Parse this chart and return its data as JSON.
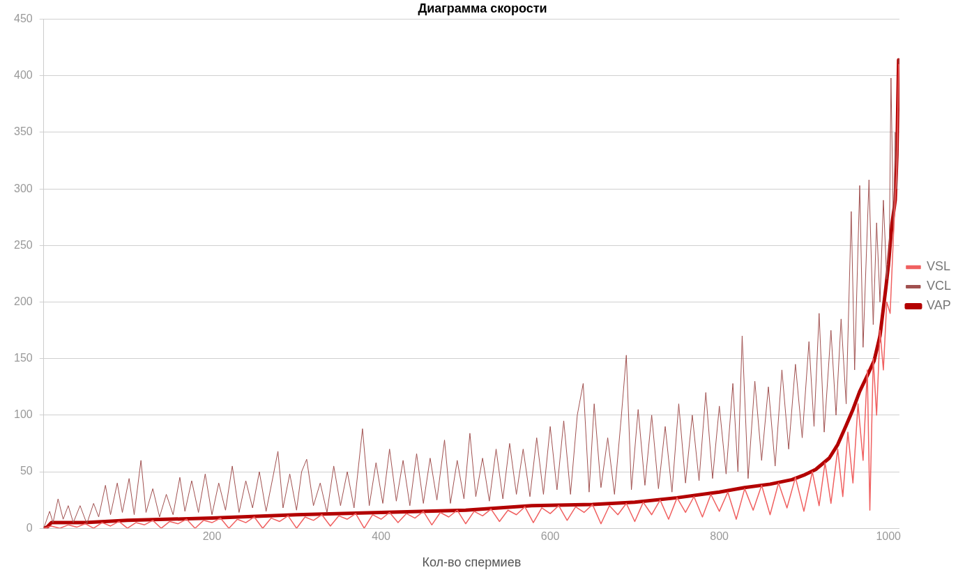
{
  "chart_data": {
    "type": "line",
    "title": "Диаграмма скорости",
    "xlabel": "Кол-во спермиев",
    "xlim": [
      1,
      1013
    ],
    "xticks": [
      200,
      400,
      600,
      800,
      1000
    ],
    "ylim": [
      0,
      450
    ],
    "yticks": [
      0,
      50,
      100,
      150,
      200,
      250,
      300,
      350,
      400,
      450
    ],
    "grid": "y",
    "legend": "right",
    "series": [
      {
        "name": "VAP",
        "color": "#b30000",
        "x": [
          1,
          5,
          10,
          50,
          100,
          200,
          300,
          400,
          500,
          578,
          650,
          700,
          750,
          800,
          830,
          860,
          886,
          900,
          914,
          930,
          940,
          950,
          958,
          966,
          975,
          983,
          990,
          997,
          1000,
          1004,
          1008,
          1010,
          1012
        ],
        "values": [
          0,
          1,
          5,
          5,
          7,
          9,
          12,
          14,
          16,
          20,
          21,
          23,
          27,
          32,
          36,
          39,
          43,
          47,
          52,
          62,
          74,
          91,
          105,
          121,
          135,
          148,
          170,
          213,
          233,
          268,
          290,
          330,
          414
        ]
      },
      {
        "name": "VCL",
        "color": "#a0504f",
        "x": [
          1,
          8,
          12,
          18,
          24,
          30,
          36,
          44,
          52,
          60,
          66,
          74,
          80,
          88,
          94,
          102,
          108,
          116,
          122,
          130,
          138,
          146,
          154,
          162,
          168,
          176,
          184,
          192,
          200,
          208,
          216,
          224,
          232,
          240,
          248,
          256,
          264,
          272,
          278,
          284,
          292,
          300,
          306,
          312,
          320,
          328,
          336,
          344,
          352,
          360,
          368,
          378,
          386,
          394,
          402,
          410,
          418,
          426,
          434,
          442,
          450,
          458,
          466,
          475,
          482,
          490,
          498,
          505,
          512,
          520,
          528,
          536,
          544,
          552,
          560,
          568,
          576,
          584,
          592,
          600,
          608,
          616,
          624,
          632,
          639,
          646,
          652,
          660,
          668,
          676,
          684,
          690,
          696,
          704,
          712,
          720,
          728,
          736,
          744,
          752,
          760,
          768,
          776,
          784,
          792,
          800,
          808,
          816,
          822,
          827,
          834,
          842,
          850,
          858,
          866,
          874,
          882,
          890,
          898,
          906,
          912,
          918,
          924,
          932,
          938,
          944,
          950,
          956,
          960,
          966,
          970,
          977,
          982,
          986,
          990,
          994,
          998,
          1001,
          1003,
          1006,
          1008,
          1010,
          1012
        ],
        "values": [
          0,
          15,
          5,
          26,
          8,
          20,
          5,
          20,
          4,
          22,
          10,
          38,
          12,
          40,
          14,
          44,
          12,
          60,
          14,
          35,
          10,
          30,
          12,
          45,
          15,
          42,
          14,
          48,
          12,
          40,
          16,
          55,
          14,
          42,
          18,
          50,
          15,
          45,
          68,
          18,
          48,
          16,
          50,
          61,
          20,
          40,
          14,
          55,
          20,
          50,
          18,
          88,
          20,
          58,
          22,
          70,
          24,
          60,
          20,
          66,
          22,
          62,
          25,
          78,
          22,
          60,
          26,
          84,
          28,
          62,
          24,
          70,
          26,
          75,
          30,
          70,
          28,
          80,
          30,
          90,
          34,
          95,
          30,
          100,
          128,
          32,
          110,
          36,
          80,
          30,
          98,
          153,
          34,
          105,
          38,
          100,
          35,
          90,
          32,
          110,
          40,
          100,
          42,
          120,
          44,
          108,
          48,
          128,
          50,
          170,
          44,
          130,
          60,
          125,
          55,
          140,
          70,
          145,
          80,
          165,
          90,
          190,
          85,
          175,
          100,
          185,
          110,
          280,
          140,
          303,
          160,
          308,
          180,
          270,
          200,
          290,
          220,
          250,
          398,
          260,
          350,
          300,
          415
        ]
      },
      {
        "name": "VSL",
        "color": "#f06060",
        "x": [
          1,
          10,
          20,
          30,
          40,
          50,
          60,
          70,
          80,
          90,
          100,
          110,
          120,
          130,
          140,
          150,
          160,
          170,
          180,
          190,
          200,
          210,
          220,
          230,
          240,
          250,
          260,
          270,
          280,
          290,
          300,
          310,
          320,
          330,
          340,
          350,
          360,
          370,
          380,
          390,
          400,
          410,
          420,
          430,
          440,
          450,
          460,
          470,
          480,
          490,
          500,
          510,
          520,
          530,
          540,
          550,
          560,
          570,
          580,
          590,
          600,
          610,
          620,
          630,
          640,
          650,
          660,
          670,
          680,
          690,
          700,
          710,
          720,
          730,
          740,
          750,
          760,
          770,
          780,
          790,
          800,
          810,
          820,
          830,
          840,
          850,
          860,
          870,
          880,
          890,
          900,
          910,
          918,
          925,
          932,
          940,
          946,
          952,
          958,
          964,
          970,
          975,
          978,
          982,
          986,
          990,
          994,
          998,
          1002,
          1006,
          1010,
          1012
        ],
        "values": [
          0,
          2,
          0,
          3,
          1,
          4,
          0,
          5,
          2,
          6,
          0,
          5,
          3,
          7,
          0,
          6,
          4,
          8,
          0,
          7,
          5,
          9,
          0,
          8,
          5,
          10,
          0,
          9,
          6,
          11,
          0,
          10,
          7,
          12,
          2,
          11,
          8,
          13,
          0,
          12,
          8,
          14,
          5,
          13,
          9,
          15,
          3,
          14,
          10,
          16,
          4,
          15,
          11,
          17,
          6,
          16,
          12,
          19,
          5,
          18,
          13,
          20,
          7,
          19,
          14,
          21,
          4,
          20,
          12,
          22,
          6,
          23,
          12,
          25,
          8,
          27,
          14,
          28,
          10,
          30,
          15,
          32,
          8,
          35,
          16,
          38,
          12,
          40,
          18,
          45,
          15,
          50,
          20,
          58,
          22,
          70,
          28,
          85,
          40,
          110,
          60,
          140,
          16,
          150,
          100,
          175,
          140,
          200,
          190,
          260,
          320,
          410
        ]
      }
    ]
  }
}
